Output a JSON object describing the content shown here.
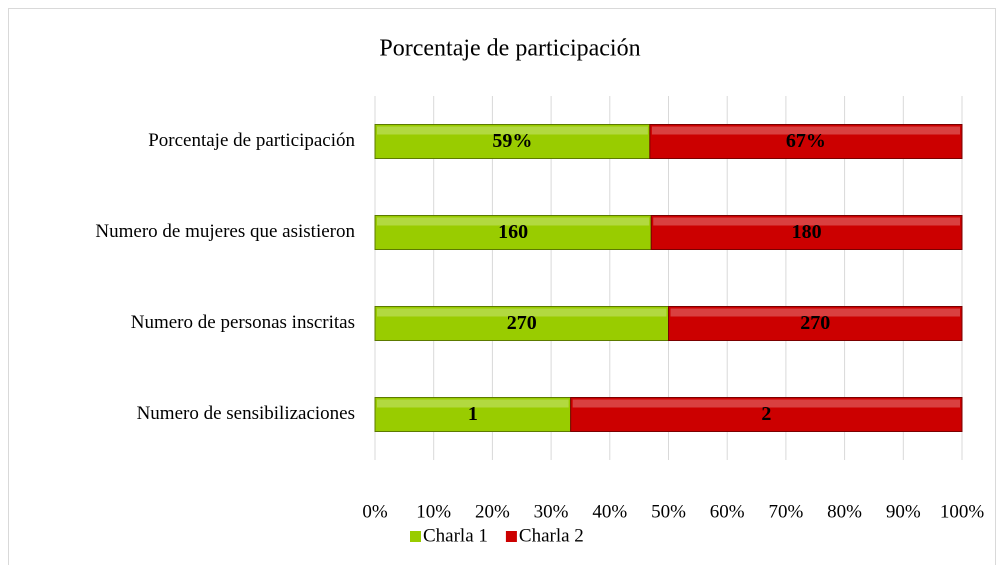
{
  "chart_data": {
    "type": "bar",
    "orientation": "horizontal",
    "stacked": "percent",
    "title": "Porcentaje de participación",
    "categories": [
      "Porcentaje de participación",
      "Numero de mujeres que asistieron",
      "Numero de personas inscritas",
      "Numero de sensibilizaciones"
    ],
    "series": [
      {
        "name": "Charla 1",
        "color": "#99cc00",
        "values": [
          59,
          160,
          270,
          1
        ],
        "value_labels": [
          "59%",
          "160",
          "270",
          "1"
        ]
      },
      {
        "name": "Charla 2",
        "color": "#cc0000",
        "values": [
          67,
          180,
          270,
          2
        ],
        "value_labels": [
          "67%",
          "180",
          "270",
          "2"
        ]
      }
    ],
    "xlim": [
      0,
      100
    ],
    "xticks": [
      {
        "value": 0,
        "label": "0%"
      },
      {
        "value": 10,
        "label": "10%"
      },
      {
        "value": 20,
        "label": "20%"
      },
      {
        "value": 30,
        "label": "30%"
      },
      {
        "value": 40,
        "label": "40%"
      },
      {
        "value": 50,
        "label": "50%"
      },
      {
        "value": 60,
        "label": "60%"
      },
      {
        "value": 70,
        "label": "70%"
      },
      {
        "value": 80,
        "label": "80%"
      },
      {
        "value": 90,
        "label": "90%"
      },
      {
        "value": 100,
        "label": "100%"
      }
    ],
    "grid": true,
    "legend": "bottom"
  }
}
